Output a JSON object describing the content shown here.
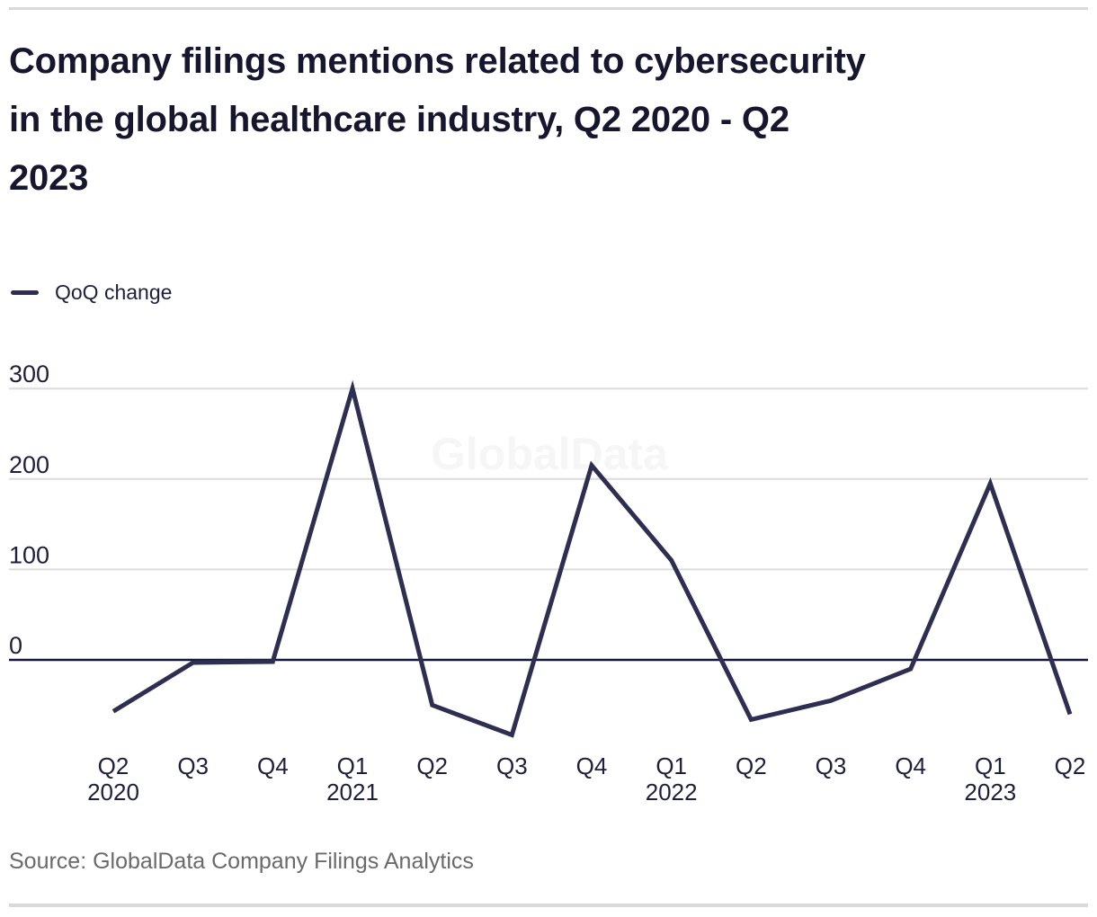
{
  "title": "Company filings mentions related to cybersecurity\nin the global healthcare industry, Q2 2020 - Q2\n2023",
  "legend": {
    "label": "QoQ change"
  },
  "source": "Source: GlobalData Company Filings Analytics",
  "watermark": "GlobalData",
  "colors": {
    "line": "#2e2e52",
    "zero_axis": "#16163a",
    "grid": "#dcdcdc",
    "tick_text": "#1e1e3e",
    "watermark": "#f6f6f6",
    "rule": "#d9d9d9",
    "source_text": "#6a6a6a"
  },
  "chart_data": {
    "type": "line",
    "title": "Company filings mentions related to cybersecurity in the global healthcare industry, Q2 2020 - Q2 2023",
    "categories": [
      "Q2 2020",
      "Q3",
      "Q4",
      "Q1 2021",
      "Q2",
      "Q3",
      "Q4",
      "Q1 2022",
      "Q2",
      "Q3",
      "Q4",
      "Q1 2023",
      "Q2"
    ],
    "series": [
      {
        "name": "QoQ change",
        "color": "#2e2e52",
        "values": [
          -57,
          -3,
          -2,
          300,
          -50,
          -83,
          215,
          110,
          -66,
          -45,
          -10,
          195,
          -60
        ]
      }
    ],
    "xlabel": "",
    "ylabel": "",
    "y_ticks": [
      0,
      100,
      200,
      300
    ],
    "ylim": [
      -100,
      310
    ],
    "grid": "horizontal-only",
    "zero_axis": true,
    "legend_position": "top-left",
    "watermark_text": "GlobalData"
  }
}
